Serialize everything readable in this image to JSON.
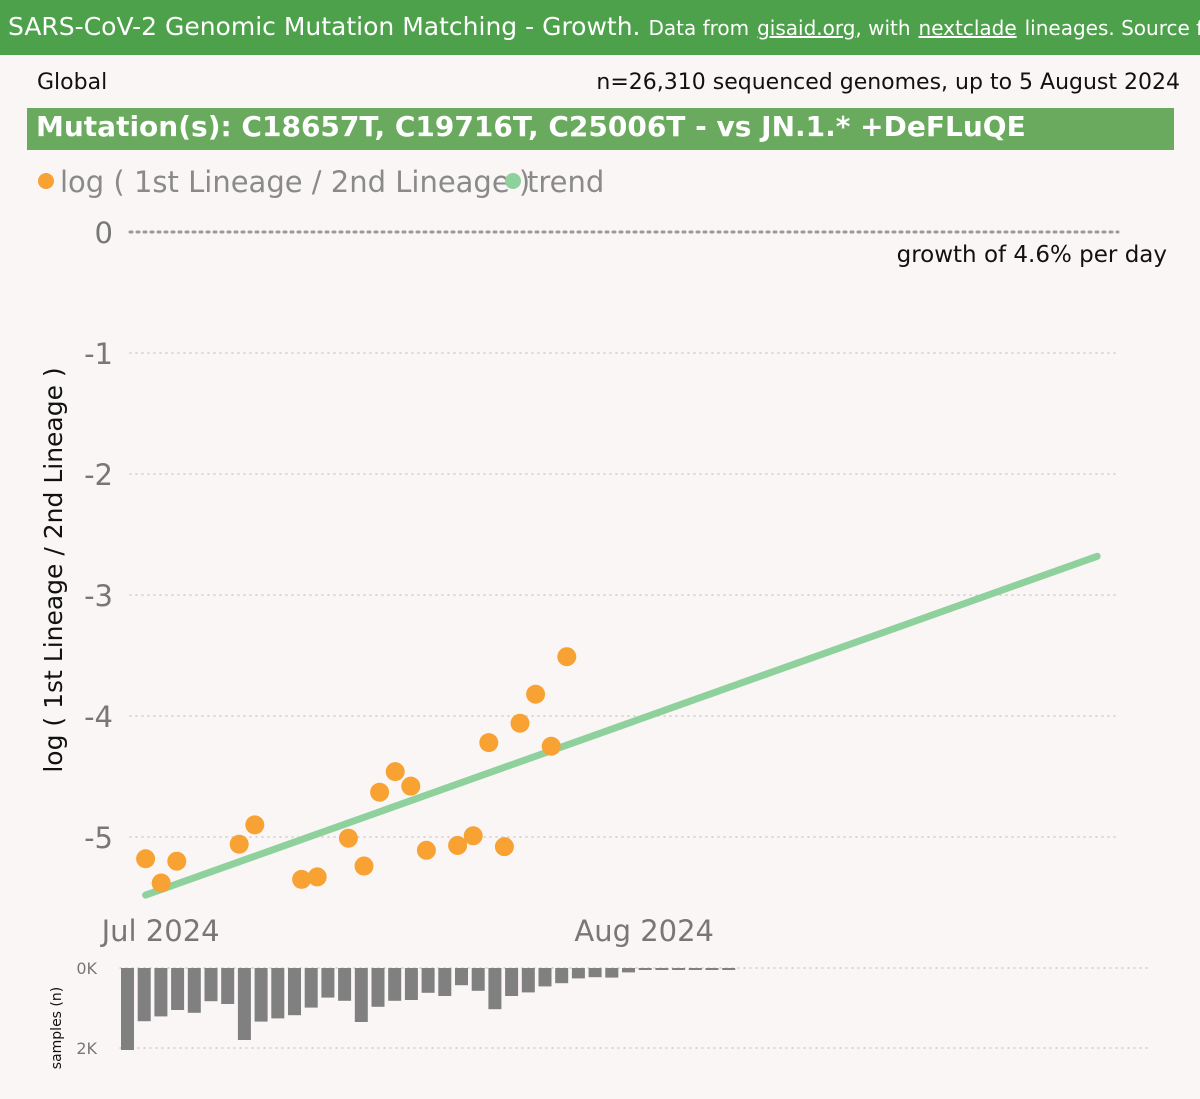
{
  "header": {
    "title": "SARS-CoV-2 Genomic Mutation Matching - Growth.",
    "data_prefix": "Data from",
    "source_link": "gisaid.org",
    "with_text": ", with",
    "lineage_link": "nextclade",
    "suffix_text": "lineages. Source files & i"
  },
  "region": "Global",
  "sample_count_text": "n=26,310 sequenced genomes, up to 5 August 2024",
  "mutation_title": "Mutation(s): C18657T, C19716T, C25006T - vs JN.1.* +DeFLuQE",
  "growth_note": "growth of 4.6% per day",
  "colors": {
    "points": "#f7a233",
    "trend": "#8fd19c",
    "bars": "#808080",
    "banner": "#4ea14b",
    "title_bar": "#6aaa5e"
  },
  "chart_data": [
    {
      "type": "scatter",
      "legend": [
        {
          "name": "log ( 1st Lineage / 2nd Lineage )",
          "color": "#f7a233"
        },
        {
          "name": "trend",
          "color": "#8fd19c"
        }
      ],
      "legend_position": "top-left",
      "ylabel": "log ( 1st Lineage / 2nd Lineage )",
      "ylim": [
        -5.5,
        0
      ],
      "yticks": [
        "0",
        "-1",
        "-2",
        "-3",
        "-4",
        "-5"
      ],
      "ytick_values": [
        0,
        -1,
        -2,
        -3,
        -4,
        -5
      ],
      "xticks": [
        {
          "label": "Jul 2024",
          "date": "2024-07-01"
        },
        {
          "label": "Aug 2024",
          "date": "2024-08-01"
        }
      ],
      "xlim": [
        "2024-06-30",
        "2024-08-31"
      ],
      "grid": "dotted horizontal",
      "points": [
        {
          "x": "2024-07-01",
          "y": -5.18
        },
        {
          "x": "2024-07-02",
          "y": -5.38
        },
        {
          "x": "2024-07-03",
          "y": -5.2
        },
        {
          "x": "2024-07-07",
          "y": -5.06
        },
        {
          "x": "2024-07-08",
          "y": -4.9
        },
        {
          "x": "2024-07-11",
          "y": -5.35
        },
        {
          "x": "2024-07-12",
          "y": -5.33
        },
        {
          "x": "2024-07-14",
          "y": -5.01
        },
        {
          "x": "2024-07-15",
          "y": -5.24
        },
        {
          "x": "2024-07-16",
          "y": -4.63
        },
        {
          "x": "2024-07-17",
          "y": -4.46
        },
        {
          "x": "2024-07-18",
          "y": -4.58
        },
        {
          "x": "2024-07-19",
          "y": -5.11
        },
        {
          "x": "2024-07-21",
          "y": -5.07
        },
        {
          "x": "2024-07-22",
          "y": -4.99
        },
        {
          "x": "2024-07-23",
          "y": -4.22
        },
        {
          "x": "2024-07-24",
          "y": -5.08
        },
        {
          "x": "2024-07-25",
          "y": -4.06
        },
        {
          "x": "2024-07-26",
          "y": -3.82
        },
        {
          "x": "2024-07-27",
          "y": -4.25
        },
        {
          "x": "2024-07-28",
          "y": -3.51
        }
      ],
      "trend": [
        {
          "x": "2024-07-01",
          "y": -5.48
        },
        {
          "x": "2024-08-31",
          "y": -2.68
        }
      ]
    },
    {
      "type": "bar",
      "ylabel": "samples (n)",
      "ylim": [
        0,
        2000
      ],
      "yticks": [
        "0K",
        "2K"
      ],
      "ytick_values": [
        0,
        2000
      ],
      "grid": "dotted horizontal",
      "x": [
        "2024-06-30",
        "2024-07-01",
        "2024-07-02",
        "2024-07-03",
        "2024-07-04",
        "2024-07-05",
        "2024-07-06",
        "2024-07-07",
        "2024-07-08",
        "2024-07-09",
        "2024-07-10",
        "2024-07-11",
        "2024-07-12",
        "2024-07-13",
        "2024-07-14",
        "2024-07-15",
        "2024-07-16",
        "2024-07-17",
        "2024-07-18",
        "2024-07-19",
        "2024-07-20",
        "2024-07-21",
        "2024-07-22",
        "2024-07-23",
        "2024-07-24",
        "2024-07-25",
        "2024-07-26",
        "2024-07-27",
        "2024-07-28",
        "2024-07-29",
        "2024-07-30",
        "2024-07-31",
        "2024-08-01",
        "2024-08-02",
        "2024-08-03",
        "2024-08-04",
        "2024-08-05"
      ],
      "values": [
        2050,
        1330,
        1210,
        1050,
        1120,
        830,
        900,
        1800,
        1340,
        1260,
        1180,
        990,
        740,
        820,
        1350,
        970,
        820,
        800,
        620,
        700,
        430,
        570,
        1030,
        700,
        610,
        460,
        380,
        260,
        230,
        240,
        110,
        40,
        40,
        40,
        40,
        40,
        40
      ]
    }
  ]
}
